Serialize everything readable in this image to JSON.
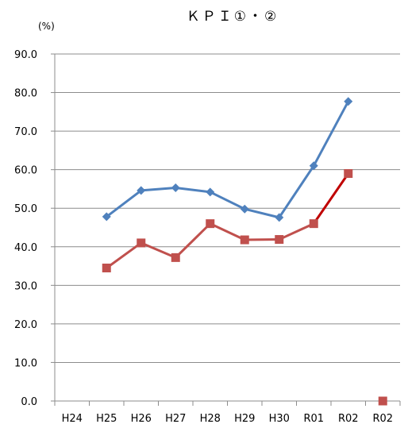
{
  "chart_data": {
    "type": "line",
    "title": "ＫＰＩ①・②",
    "ylabel": "(%)",
    "ylim": [
      0,
      90
    ],
    "ytick_step": 10,
    "y_tick_labels": [
      "0.0",
      "10.0",
      "20.0",
      "30.0",
      "40.0",
      "50.0",
      "60.0",
      "70.0",
      "80.0",
      "90.0"
    ],
    "categories": [
      "H24",
      "H25",
      "H26",
      "H27",
      "H28",
      "H29",
      "H30",
      "R01",
      "R02",
      "R02"
    ],
    "grid": true,
    "legend": "none",
    "series": [
      {
        "color": "#4f81bd",
        "marker": "diamond",
        "points": [
          {
            "x": 1,
            "y": 47.8
          },
          {
            "x": 2,
            "y": 54.6
          },
          {
            "x": 3,
            "y": 55.3
          },
          {
            "x": 4,
            "y": 54.2
          },
          {
            "x": 5,
            "y": 49.8
          },
          {
            "x": 6,
            "y": 47.6
          },
          {
            "x": 7,
            "y": 61.0
          },
          {
            "x": 8,
            "y": 77.7
          }
        ]
      },
      {
        "color": "#c0504d",
        "segment_colors": [
          "#c0504d",
          "#c0504d",
          "#c0504d",
          "#c0504d",
          "#c0504d",
          "#c0504d",
          "#c00000"
        ],
        "marker": "square",
        "points": [
          {
            "x": 1,
            "y": 34.5
          },
          {
            "x": 2,
            "y": 41.0
          },
          {
            "x": 3,
            "y": 37.2
          },
          {
            "x": 4,
            "y": 46.0
          },
          {
            "x": 5,
            "y": 41.8
          },
          {
            "x": 6,
            "y": 41.9
          },
          {
            "x": 7,
            "y": 46.0
          },
          {
            "x": 8,
            "y": 59.0
          }
        ]
      },
      {
        "color": "#c0504d",
        "marker": "square",
        "points": [
          {
            "x": 9,
            "y": 0.0
          }
        ]
      }
    ]
  }
}
